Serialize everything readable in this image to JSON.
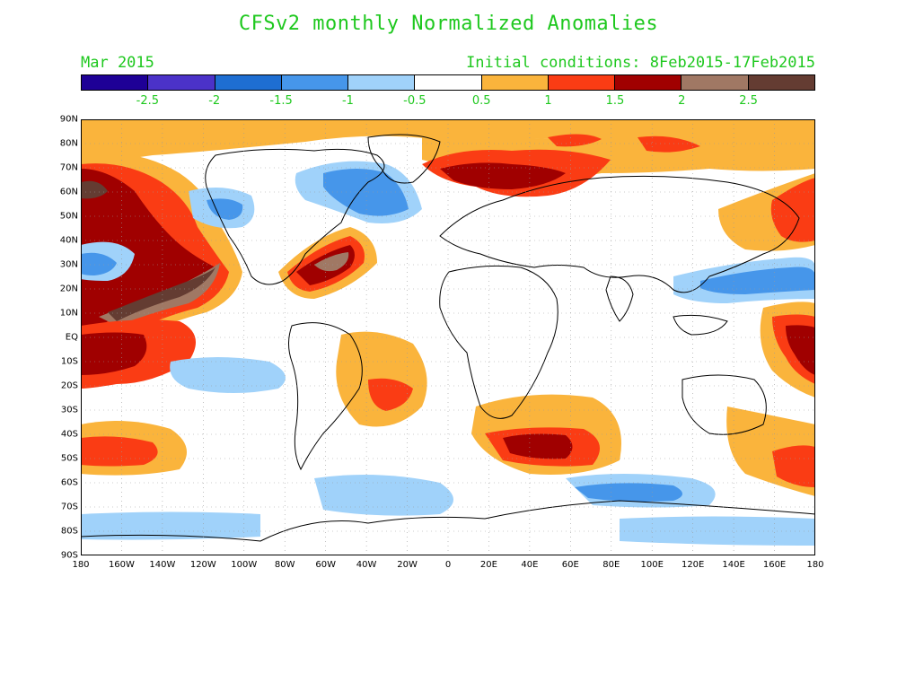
{
  "header": {
    "title": "CFSv2 monthly Normalized Anomalies",
    "forecast_month": "Mar 2015",
    "initial_conditions": "Initial conditions: 8Feb2015-17Feb2015"
  },
  "colorbar": {
    "colors": [
      "#1e0096",
      "#4b32c8",
      "#1e6ed2",
      "#4696ea",
      "#a0d2fa",
      "#ffffff",
      "#fab43c",
      "#fa3c14",
      "#a00000",
      "#a07864",
      "#643c32"
    ],
    "labels": [
      "-2.5",
      "-2",
      "-1.5",
      "-1",
      "-0.5",
      "0.5",
      "1",
      "1.5",
      "2",
      "2.5"
    ]
  },
  "map": {
    "lat_labels": [
      "90N",
      "80N",
      "70N",
      "60N",
      "50N",
      "40N",
      "30N",
      "20N",
      "10N",
      "EQ",
      "10S",
      "20S",
      "30S",
      "40S",
      "50S",
      "60S",
      "70S",
      "80S",
      "90S"
    ],
    "lon_labels": [
      "180",
      "160W",
      "140W",
      "120W",
      "100W",
      "80W",
      "60W",
      "40W",
      "20W",
      "0",
      "20E",
      "40E",
      "60E",
      "80E",
      "100E",
      "120E",
      "140E",
      "160E",
      "180"
    ]
  }
}
